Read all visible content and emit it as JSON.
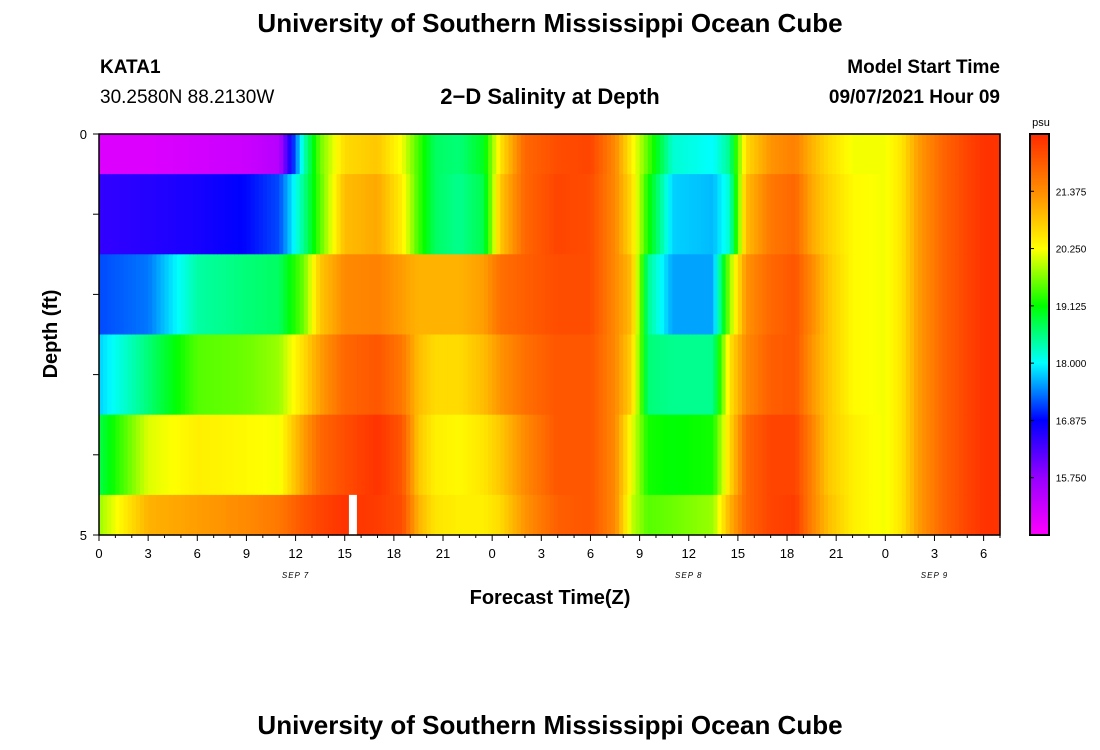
{
  "header": {
    "title_top": "University of Southern Mississippi Ocean Cube",
    "title_bottom": "University of Southern Mississippi Ocean Cube",
    "station_id": "KATA1",
    "station_coords": "30.2580N  88.2130W",
    "plot_title": "2−D Salinity at Depth",
    "model_start_label": "Model Start Time",
    "model_start_value": "09/07/2021 Hour 09"
  },
  "chart_data": {
    "type": "heatmap",
    "title": "2−D Salinity at Depth",
    "xlabel": "Forecast Time(Z)",
    "ylabel": "Depth (ft)",
    "y_ticks": [
      "0",
      "5"
    ],
    "ylim": [
      0,
      5
    ],
    "x_tick_labels": [
      "0",
      "3",
      "6",
      "9",
      "12",
      "15",
      "18",
      "21",
      "0",
      "3",
      "6",
      "9",
      "12",
      "15",
      "18",
      "21",
      "0",
      "3",
      "6"
    ],
    "date_labels": [
      {
        "label": "SEP 7",
        "hour_index": 12
      },
      {
        "label": "SEP 8",
        "hour_index": 36
      },
      {
        "label": "SEP 9",
        "hour_index": 51
      }
    ],
    "colorbar": {
      "unit": "psu",
      "min": 14.625,
      "max": 22.5,
      "tick_labels": [
        "21.375",
        "20.250",
        "19.125",
        "18.000",
        "16.875",
        "15.750"
      ],
      "tick_values": [
        21.375,
        20.25,
        19.125,
        18.0,
        16.875,
        15.75
      ]
    },
    "hours": 55,
    "depth_bins": 5,
    "missing_cells": [
      {
        "hour": 15.5,
        "row": 4
      }
    ],
    "keyframes": [
      {
        "h": 0,
        "v": [
          15.0,
          16.5,
          17.2,
          17.8,
          18.8,
          19.8
        ]
      },
      {
        "h": 3,
        "v": [
          15.0,
          16.6,
          17.4,
          18.6,
          20.1,
          21.0
        ]
      },
      {
        "h": 6,
        "v": [
          15.1,
          16.7,
          18.4,
          19.5,
          20.4,
          21.2
        ]
      },
      {
        "h": 9,
        "v": [
          15.2,
          16.9,
          18.6,
          19.6,
          20.3,
          21.4
        ]
      },
      {
        "h": 11,
        "v": [
          15.4,
          17.2,
          18.7,
          19.8,
          20.2,
          21.6
        ]
      },
      {
        "h": 12.5,
        "v": [
          18.3,
          18.5,
          19.6,
          20.6,
          21.2,
          22.0
        ]
      },
      {
        "h": 13.5,
        "v": [
          19.6,
          19.5,
          20.8,
          21.2,
          21.8,
          22.2
        ]
      },
      {
        "h": 15,
        "v": [
          20.6,
          20.9,
          21.4,
          21.8,
          22.1,
          22.4
        ]
      },
      {
        "h": 17,
        "v": [
          20.8,
          21.1,
          21.5,
          22.0,
          22.4,
          22.3
        ]
      },
      {
        "h": 18.5,
        "v": [
          20.2,
          20.4,
          21.2,
          21.6,
          22.0,
          22.1
        ]
      },
      {
        "h": 19.5,
        "v": [
          19.4,
          19.4,
          21.0,
          20.9,
          20.8,
          21.0
        ]
      },
      {
        "h": 20.5,
        "v": [
          18.7,
          18.7,
          21.0,
          20.6,
          20.4,
          20.5
        ]
      },
      {
        "h": 22,
        "v": [
          18.6,
          18.5,
          21.0,
          20.6,
          20.3,
          20.4
        ]
      },
      {
        "h": 23.5,
        "v": [
          19.0,
          18.8,
          21.2,
          20.9,
          20.5,
          20.4
        ]
      },
      {
        "h": 24.5,
        "v": [
          20.5,
          20.8,
          21.7,
          21.3,
          20.8,
          20.6
        ]
      },
      {
        "h": 26,
        "v": [
          21.8,
          21.8,
          21.9,
          21.7,
          21.4,
          21.3
        ]
      },
      {
        "h": 28,
        "v": [
          22.1,
          22.2,
          22.1,
          22.0,
          22.0,
          21.9
        ]
      },
      {
        "h": 30,
        "v": [
          22.2,
          22.1,
          22.1,
          22.0,
          22.0,
          22.0
        ]
      },
      {
        "h": 31.5,
        "v": [
          21.4,
          21.4,
          21.4,
          21.4,
          21.4,
          21.4
        ]
      },
      {
        "h": 32.5,
        "v": [
          20.4,
          20.6,
          20.9,
          20.7,
          20.2,
          20.0
        ]
      },
      {
        "h": 33.5,
        "v": [
          19.5,
          19.2,
          18.5,
          18.6,
          19.2,
          19.5
        ]
      },
      {
        "h": 35,
        "v": [
          18.2,
          17.8,
          17.6,
          18.5,
          19.1,
          19.6
        ]
      },
      {
        "h": 37.5,
        "v": [
          18.0,
          17.7,
          17.6,
          18.5,
          19.2,
          19.8
        ]
      },
      {
        "h": 38.5,
        "v": [
          18.5,
          18.2,
          19.8,
          20.5,
          20.6,
          21.0
        ]
      },
      {
        "h": 39.5,
        "v": [
          20.6,
          20.9,
          21.3,
          21.4,
          21.8,
          21.8
        ]
      },
      {
        "h": 41,
        "v": [
          21.3,
          21.6,
          21.8,
          21.9,
          22.2,
          22.2
        ]
      },
      {
        "h": 42.5,
        "v": [
          21.5,
          21.8,
          22.0,
          22.0,
          22.2,
          22.3
        ]
      },
      {
        "h": 43.5,
        "v": [
          21.0,
          21.1,
          21.4,
          21.3,
          21.5,
          21.5
        ]
      },
      {
        "h": 44.5,
        "v": [
          20.6,
          20.7,
          20.8,
          20.8,
          20.8,
          20.9
        ]
      },
      {
        "h": 46,
        "v": [
          20.2,
          20.3,
          20.3,
          20.3,
          20.4,
          20.4
        ]
      },
      {
        "h": 48,
        "v": [
          20.2,
          20.2,
          20.2,
          20.2,
          20.2,
          20.2
        ]
      },
      {
        "h": 49,
        "v": [
          20.5,
          20.5,
          20.5,
          20.5,
          20.5,
          20.5
        ]
      },
      {
        "h": 50,
        "v": [
          21.2,
          21.2,
          21.2,
          21.2,
          21.2,
          21.2
        ]
      },
      {
        "h": 51.5,
        "v": [
          21.8,
          21.8,
          21.8,
          21.8,
          21.8,
          21.8
        ]
      },
      {
        "h": 53,
        "v": [
          22.2,
          22.2,
          22.2,
          22.2,
          22.2,
          22.2
        ]
      },
      {
        "h": 54,
        "v": [
          22.4,
          22.4,
          22.4,
          22.4,
          22.4,
          22.4
        ]
      }
    ]
  },
  "colors": {
    "missing": "#ffffff",
    "scale": [
      "#ff00ff",
      "#9600ff",
      "#0000ff",
      "#00ffff",
      "#00ff00",
      "#ffff00",
      "#ff8c00",
      "#ff2a00"
    ]
  }
}
